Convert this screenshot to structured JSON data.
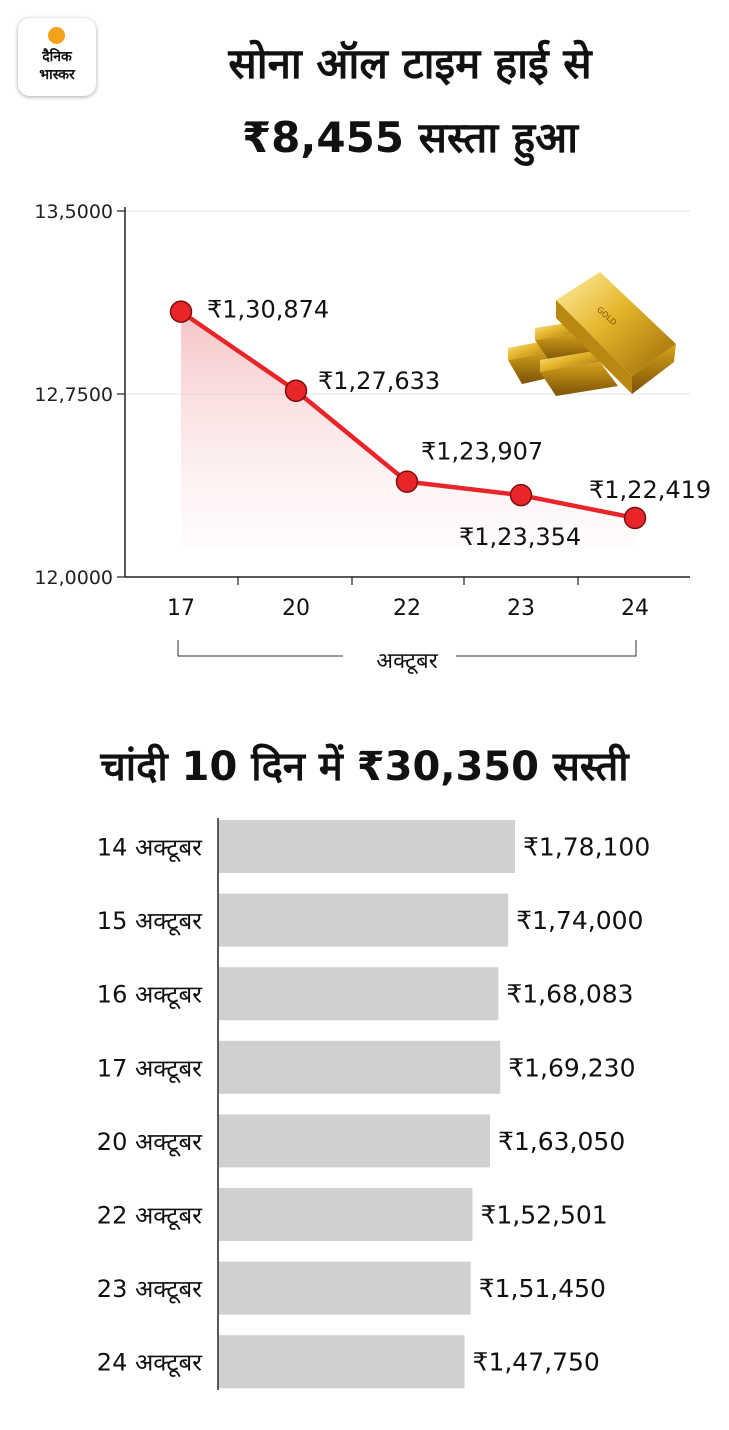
{
  "logo": {
    "line1": "दैनिक",
    "line2": "भास्कर"
  },
  "gold": {
    "title_line1": "सोना ऑल टाइम हाई से",
    "title_line2": "₹8,455 सस्ता हुआ"
  },
  "silver": {
    "title": "चांदी 10 दिन में ₹30,350 सस्ती"
  },
  "colors": {
    "line": "#e8262a",
    "bar": "#d0d0d0",
    "gold_bar": "#e0b020"
  },
  "icons": {
    "gold_bars": "gold-bars-illustration"
  },
  "chart_data": [
    {
      "type": "line",
      "x": [
        "17",
        "20",
        "22",
        "23",
        "24"
      ],
      "values": [
        130874,
        127633,
        123907,
        123354,
        122419
      ],
      "data_labels": [
        "₹1,30,874",
        "₹1,27,633",
        "₹1,23,907",
        "₹1,23,354",
        "₹1,22,419"
      ],
      "ylim": [
        120000,
        135000
      ],
      "yticks": [
        120000,
        127500,
        135000
      ],
      "ytick_labels": [
        "12,0000",
        "12,7500",
        "13,5000"
      ],
      "xlabel": "अक्टूबर",
      "grid": true
    },
    {
      "type": "bar",
      "orientation": "horizontal",
      "categories": [
        "14 अक्टूबर",
        "15 अक्टूबर",
        "16 अक्टूबर",
        "17 अक्टूबर",
        "20 अक्टूबर",
        "22 अक्टूबर",
        "23 अक्टूबर",
        "24 अक्टूबर"
      ],
      "values": [
        178100,
        174000,
        168083,
        169230,
        163050,
        152501,
        151450,
        147750
      ],
      "data_labels": [
        "₹1,78,100",
        "₹1,74,000",
        "₹1,68,083",
        "₹1,69,230",
        "₹1,63,050",
        "₹1,52,501",
        "₹1,51,450",
        "₹1,47,750"
      ]
    }
  ]
}
